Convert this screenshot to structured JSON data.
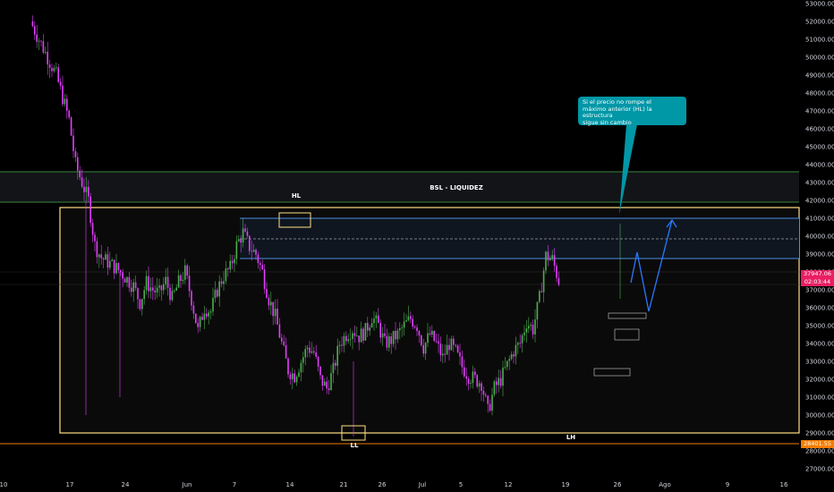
{
  "chart_data": {
    "type": "candlestick",
    "y_axis": {
      "min": 26500,
      "max": 53500,
      "ticks": [
        "53000.00",
        "52000.00",
        "51000.00",
        "50000.00",
        "49000.00",
        "48000.00",
        "47000.00",
        "46000.00",
        "45000.00",
        "44000.00",
        "43000.00",
        "42000.00",
        "41000.00",
        "40000.00",
        "39000.00",
        "38000.00",
        "37000.00",
        "36000.00",
        "35000.00",
        "34000.00",
        "33000.00",
        "32000.00",
        "31000.00",
        "30000.00",
        "29000.00",
        "28000.00",
        "27000.00"
      ]
    },
    "x_axis": {
      "ticks": [
        "10",
        "17",
        "24",
        "Jun",
        "7",
        "14",
        "21",
        "26",
        "Jul",
        "5",
        "12",
        "19",
        "26",
        "Ago",
        "9",
        "16"
      ]
    },
    "current_price": "37947.06",
    "countdown": "02:03:44",
    "low_tag": "28401.55",
    "annotations": {
      "bsl": "BSL   -   LIQUIDEZ",
      "hl": "HL",
      "ll": "LL",
      "lh": "LH",
      "callout": [
        "Si el precio no rompe el",
        "máximo anterior (HL) la estructura",
        "sigue sin cambio"
      ]
    },
    "levels": {
      "green_top": 43600,
      "green_bottom": 41900,
      "blue_top": 41000,
      "blue_mid": 39850,
      "blue_bottom": 38750,
      "range_top": 41600,
      "range_bottom": 29000,
      "orange": 28401.55
    },
    "price_path": [
      [
        10,
        52000
      ],
      [
        12,
        50500
      ],
      [
        14,
        49000
      ],
      [
        16,
        46500
      ],
      [
        17,
        44000
      ],
      [
        19,
        42000
      ],
      [
        20,
        39500
      ],
      [
        21,
        38800
      ],
      [
        23,
        38300
      ],
      [
        24,
        38000
      ],
      [
        26,
        37200
      ],
      [
        27,
        36300
      ],
      [
        28,
        37400
      ],
      [
        29,
        37000
      ],
      [
        30,
        36800
      ],
      [
        31,
        37500
      ],
      [
        32,
        36500
      ],
      [
        33,
        37400
      ],
      [
        34,
        38000
      ],
      [
        35,
        36500
      ],
      [
        36,
        34700
      ],
      [
        37,
        36000
      ],
      [
        38,
        35800
      ],
      [
        39,
        37000
      ],
      [
        40,
        37800
      ],
      [
        41,
        38200
      ],
      [
        42,
        39500
      ],
      [
        43,
        40200
      ],
      [
        44,
        39400
      ],
      [
        45,
        39000
      ],
      [
        46,
        38000
      ],
      [
        47,
        36500
      ],
      [
        48,
        35500
      ],
      [
        49,
        34000
      ],
      [
        50,
        32500
      ],
      [
        51,
        32200
      ],
      [
        52,
        33000
      ],
      [
        53,
        33800
      ],
      [
        54,
        33500
      ],
      [
        55,
        32000
      ],
      [
        56,
        31500
      ],
      [
        57,
        32500
      ],
      [
        58,
        34000
      ],
      [
        59,
        34500
      ],
      [
        60,
        34800
      ],
      [
        61,
        34400
      ],
      [
        62,
        34700
      ],
      [
        63,
        35500
      ],
      [
        64,
        35000
      ],
      [
        65,
        34000
      ],
      [
        66,
        34200
      ],
      [
        67,
        34500
      ],
      [
        68,
        35000
      ],
      [
        69,
        35400
      ],
      [
        70,
        35000
      ],
      [
        71,
        33800
      ],
      [
        72,
        34500
      ],
      [
        73,
        34000
      ],
      [
        74,
        33200
      ],
      [
        75,
        34000
      ],
      [
        76,
        33500
      ],
      [
        77,
        32700
      ],
      [
        78,
        32200
      ],
      [
        79,
        32000
      ],
      [
        80,
        31800
      ],
      [
        81,
        30200
      ],
      [
        82,
        31500
      ],
      [
        83,
        32000
      ],
      [
        84,
        32800
      ],
      [
        85,
        33600
      ],
      [
        86,
        34000
      ],
      [
        87,
        35200
      ],
      [
        88,
        34800
      ],
      [
        89,
        36500
      ],
      [
        90,
        38900
      ],
      [
        91,
        38700
      ],
      [
        92,
        37500
      ]
    ],
    "candle_seed": 7
  }
}
